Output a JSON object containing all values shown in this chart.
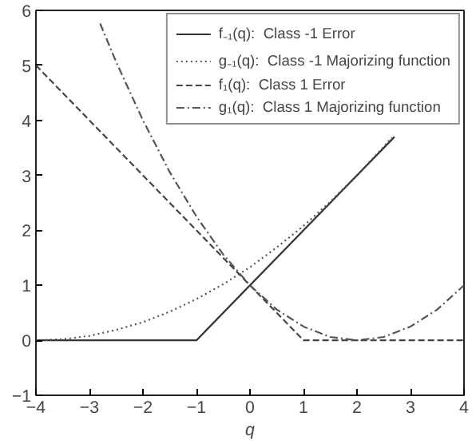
{
  "chart_data": {
    "type": "line",
    "xlabel": "q",
    "xlim": [
      -4,
      4
    ],
    "xticks": [
      -4,
      -3,
      -2,
      -1,
      0,
      1,
      2,
      3,
      4
    ],
    "ylim": [
      -1,
      6
    ],
    "yticks": [
      -1,
      0,
      1,
      2,
      3,
      4,
      5,
      6
    ],
    "grid": false,
    "legend": "top right",
    "marker": "none",
    "series": [
      {
        "name": "f₋₁(q):  Class -1 Error",
        "color": "#333333",
        "line_style": "solid",
        "x": [
          -4,
          -1,
          2.7
        ],
        "values": [
          0,
          0,
          3.7
        ]
      },
      {
        "name": "g₋₁(q):  Class -1 Majorizing function",
        "color": "#555555",
        "line_style": "dotted",
        "x": [
          -4,
          -3.5,
          -3,
          -2.5,
          -2,
          -1.5,
          -1,
          -0.5,
          0,
          0.5,
          1,
          1.5,
          2,
          2.5,
          2.65
        ],
        "values": [
          0,
          0.02,
          0.08,
          0.19,
          0.33,
          0.52,
          0.75,
          1.02,
          1.33,
          1.69,
          2.08,
          2.52,
          3,
          3.52,
          3.69
        ]
      },
      {
        "name": "f₁(q):  Class 1 Error",
        "color": "#444444",
        "line_style": "dashed",
        "x": [
          -4,
          1,
          4
        ],
        "values": [
          5,
          0,
          0
        ]
      },
      {
        "name": "g₁(q):  Class 1 Majorizing function",
        "color": "#555555",
        "line_style": "dashdot",
        "x": [
          -2.8,
          -2.5,
          -2,
          -1.5,
          -1,
          -0.5,
          0,
          0.5,
          1,
          1.5,
          2,
          2.5,
          3,
          3.5,
          4
        ],
        "values": [
          5.76,
          5.06,
          4,
          3.06,
          2.25,
          1.56,
          1,
          0.56,
          0.25,
          0.06,
          0,
          0.06,
          0.25,
          0.56,
          1
        ]
      }
    ]
  }
}
